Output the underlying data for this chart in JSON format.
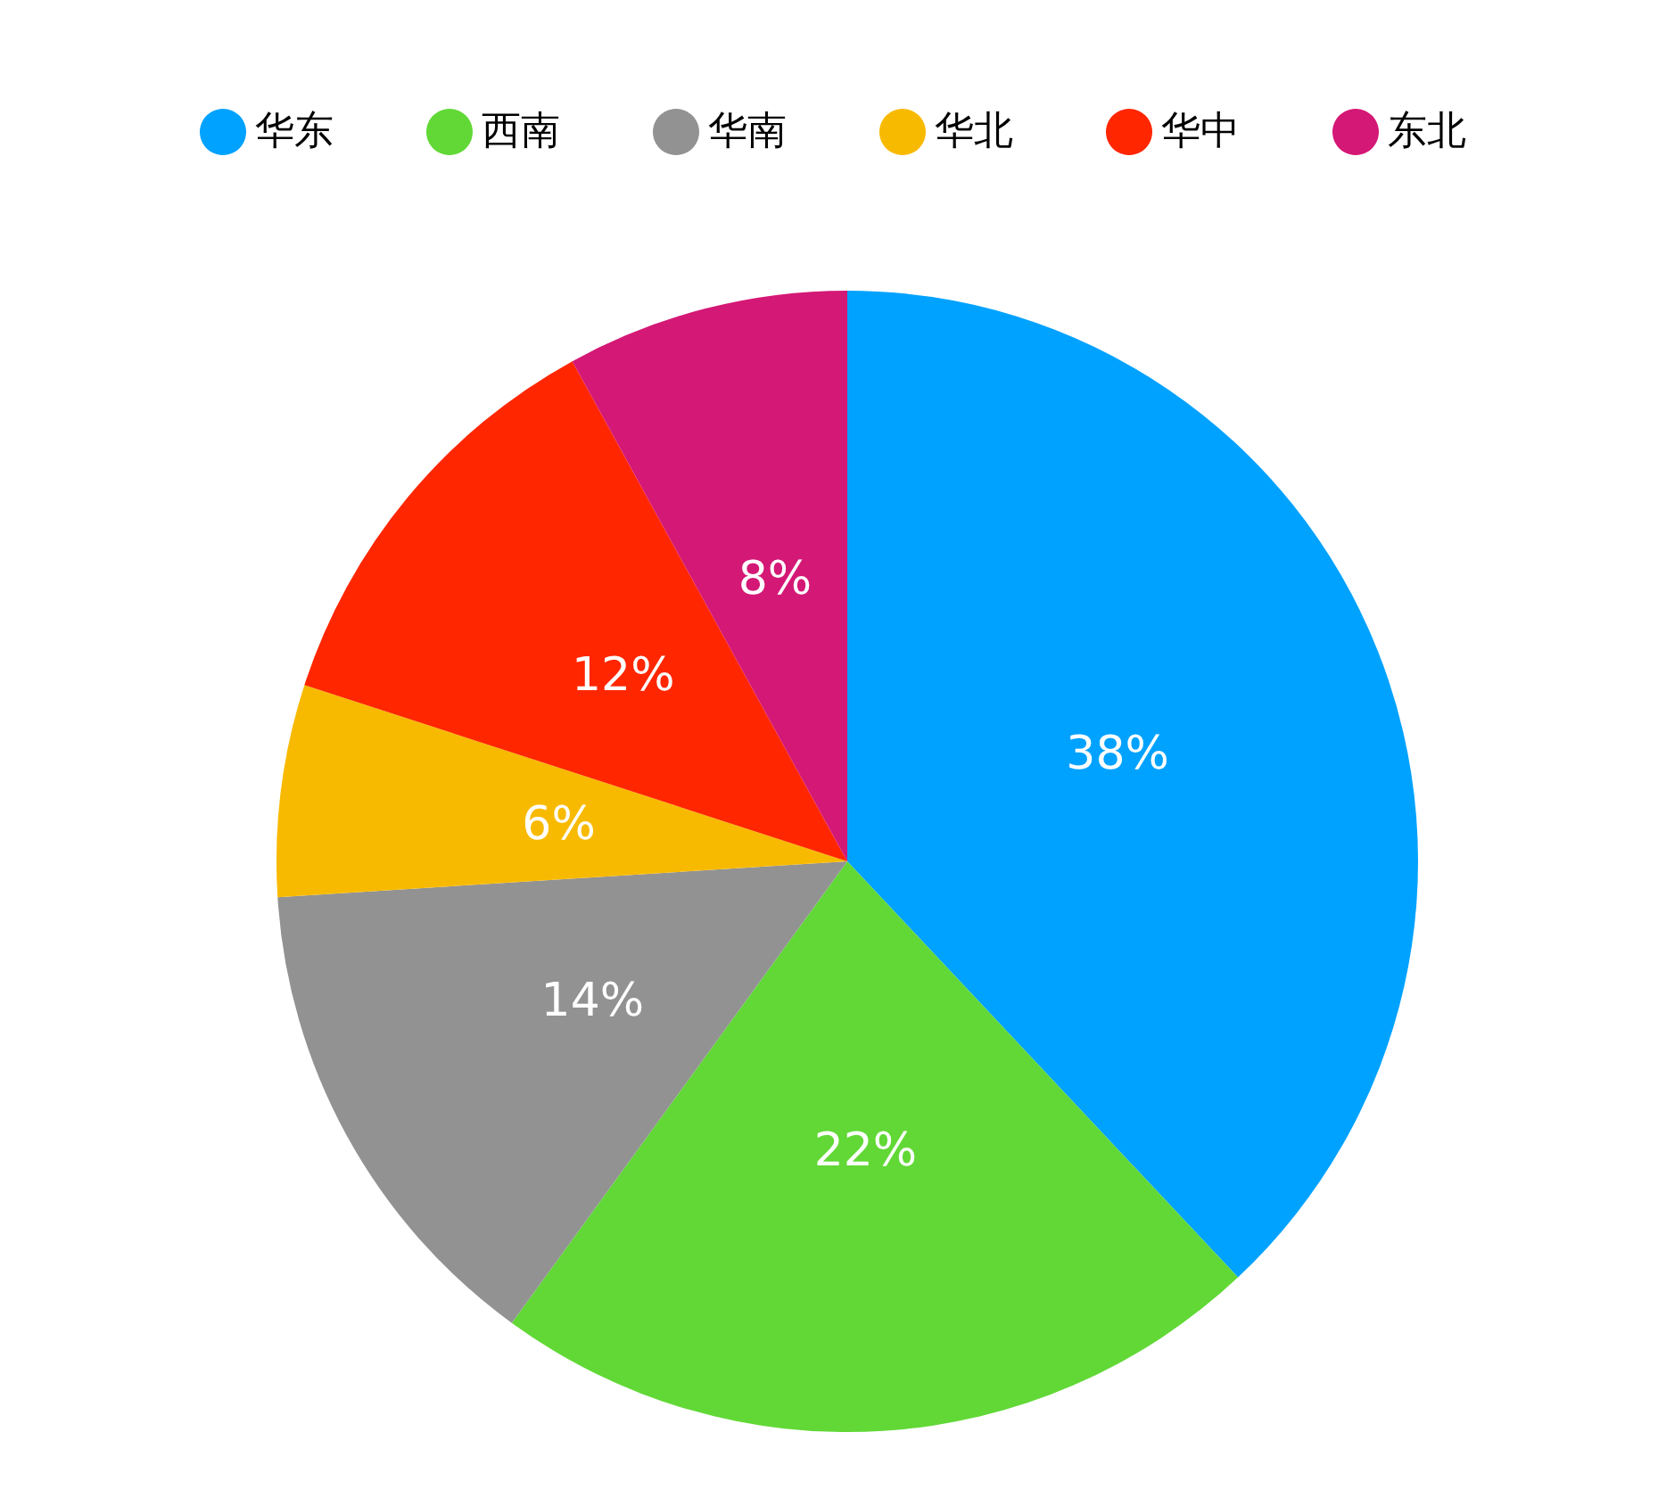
{
  "chart_data": {
    "type": "pie",
    "categories": [
      "华东",
      "西南",
      "华南",
      "华北",
      "华中",
      "东北"
    ],
    "values": [
      38,
      22,
      14,
      6,
      12,
      8
    ],
    "value_labels": [
      "38%",
      "22%",
      "14%",
      "6%",
      "12%",
      "8%"
    ],
    "colors": [
      "#00a2ff",
      "#61d836",
      "#929292",
      "#f8ba00",
      "#ff2600",
      "#d41876"
    ],
    "legend": "top"
  }
}
